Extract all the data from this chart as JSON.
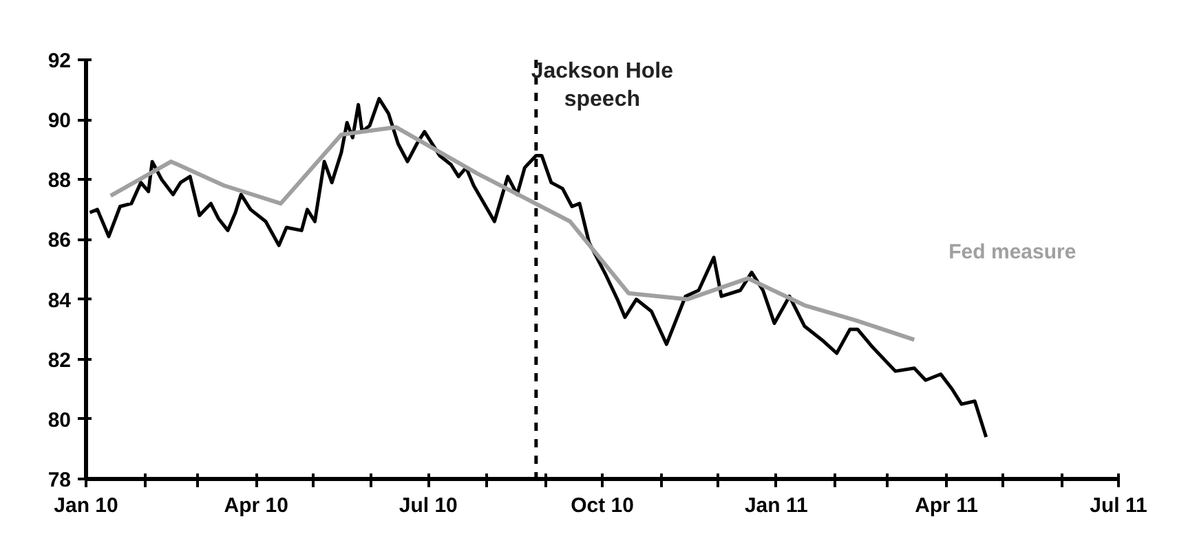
{
  "chart_data": {
    "type": "line",
    "x": [
      "2010-01-03",
      "2010-01-07",
      "2010-01-13",
      "2010-01-19",
      "2010-01-25",
      "2010-01-30",
      "2010-02-03",
      "2010-02-05",
      "2010-02-10",
      "2010-02-16",
      "2010-02-20",
      "2010-02-25",
      "2010-03-02",
      "2010-03-08",
      "2010-03-12",
      "2010-03-17",
      "2010-03-21",
      "2010-03-24",
      "2010-03-29",
      "2010-04-06",
      "2010-04-13",
      "2010-04-17",
      "2010-04-25",
      "2010-04-28",
      "2010-05-02",
      "2010-05-07",
      "2010-05-11",
      "2010-05-16",
      "2010-05-19",
      "2010-05-22",
      "2010-05-25",
      "2010-05-27",
      "2010-05-31",
      "2010-06-05",
      "2010-06-10",
      "2010-06-15",
      "2010-06-20",
      "2010-06-25",
      "2010-06-29",
      "2010-07-07",
      "2010-07-13",
      "2010-07-17",
      "2010-07-21",
      "2010-07-25",
      "2010-08-05",
      "2010-08-12",
      "2010-08-17",
      "2010-08-21",
      "2010-08-27",
      "2010-08-30",
      "2010-09-04",
      "2010-09-10",
      "2010-09-15",
      "2010-09-19",
      "2010-09-24",
      "2010-10-03",
      "2010-10-09",
      "2010-10-13",
      "2010-10-19",
      "2010-10-27",
      "2010-11-04",
      "2010-11-14",
      "2010-11-21",
      "2010-11-29",
      "2010-12-03",
      "2010-12-13",
      "2010-12-19",
      "2010-12-25",
      "2010-12-31",
      "2011-01-08",
      "2011-01-16",
      "2011-01-26",
      "2011-02-02",
      "2011-02-09",
      "2011-02-13",
      "2011-02-21",
      "2011-03-05",
      "2011-03-15",
      "2011-03-21",
      "2011-03-29",
      "2011-04-04",
      "2011-04-09",
      "2011-04-16",
      "2011-04-22"
    ],
    "series": [
      {
        "color": "#000000",
        "values": [
          86.9,
          87.0,
          86.1,
          87.1,
          87.2,
          87.9,
          87.6,
          88.6,
          88.0,
          87.5,
          87.9,
          88.1,
          86.8,
          87.2,
          86.7,
          86.3,
          86.9,
          87.5,
          87.0,
          86.6,
          85.8,
          86.4,
          86.3,
          87.0,
          86.6,
          88.6,
          87.9,
          88.9,
          89.9,
          89.4,
          90.5,
          89.6,
          89.8,
          90.7,
          90.2,
          89.2,
          88.6,
          89.2,
          89.6,
          88.8,
          88.5,
          88.1,
          88.4,
          87.8,
          86.6,
          88.1,
          87.5,
          88.4,
          88.8,
          88.8,
          87.9,
          87.7,
          87.1,
          87.2,
          85.9,
          84.8,
          84.0,
          83.4,
          84.0,
          83.6,
          82.5,
          84.1,
          84.3,
          85.4,
          84.1,
          84.3,
          84.9,
          84.3,
          83.2,
          84.1,
          83.1,
          82.6,
          82.2,
          83.0,
          83.0,
          82.4,
          81.6,
          81.7,
          81.3,
          81.5,
          81.0,
          80.5,
          80.6,
          79.4
        ]
      },
      {
        "name": "Fed measure",
        "color": "#a0a0a0",
        "x": [
          "2010-01-14",
          "2010-02-15",
          "2010-03-15",
          "2010-04-14",
          "2010-05-16",
          "2010-06-14",
          "2010-07-27",
          "2010-09-14",
          "2010-10-15",
          "2010-11-15",
          "2010-12-17",
          "2011-01-16",
          "2011-02-12",
          "2011-03-15"
        ],
        "values": [
          87.46,
          88.6,
          87.8,
          87.2,
          89.5,
          89.75,
          88.2,
          86.6,
          84.2,
          84.0,
          84.7,
          83.8,
          83.3,
          82.65
        ]
      }
    ],
    "ylim": [
      78,
      92
    ],
    "yticks": [
      78,
      80,
      82,
      84,
      86,
      88,
      90,
      92
    ],
    "xlim": [
      "2010-01-01",
      "2011-07-01"
    ],
    "xticks": [
      {
        "value": "2010-01-01",
        "label": "Jan 10"
      },
      {
        "value": "2010-02-01",
        "label": null
      },
      {
        "value": "2010-03-01",
        "label": null
      },
      {
        "value": "2010-04-01",
        "label": "Apr 10"
      },
      {
        "value": "2010-05-01",
        "label": null
      },
      {
        "value": "2010-06-01",
        "label": null
      },
      {
        "value": "2010-07-01",
        "label": "Jul 10"
      },
      {
        "value": "2010-08-01",
        "label": null
      },
      {
        "value": "2010-09-01",
        "label": null
      },
      {
        "value": "2010-10-01",
        "label": "Oct 10"
      },
      {
        "value": "2010-11-01",
        "label": null
      },
      {
        "value": "2010-12-01",
        "label": null
      },
      {
        "value": "2011-01-01",
        "label": "Jan 11"
      },
      {
        "value": "2011-02-01",
        "label": null
      },
      {
        "value": "2011-03-01",
        "label": null
      },
      {
        "value": "2011-04-01",
        "label": "Apr 11"
      },
      {
        "value": "2011-05-01",
        "label": null
      },
      {
        "value": "2011-06-01",
        "label": null
      },
      {
        "value": "2011-07-01",
        "label": "Jul 11"
      }
    ],
    "ref_lines": [
      {
        "axis": "x",
        "value": "2010-08-27",
        "label": "Jackson Hole speech",
        "color": "#000000",
        "line_style": "dashed"
      }
    ],
    "grid": false,
    "marker": "none",
    "line_style": "solid"
  }
}
